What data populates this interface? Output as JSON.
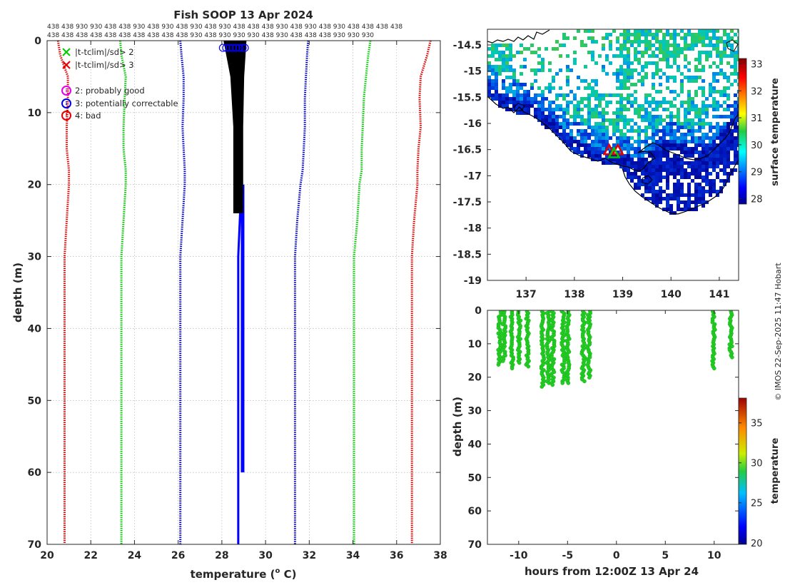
{
  "chart_data": [
    {
      "type": "line",
      "title": "Fish SOOP 13 Apr 2024",
      "xlabel": "temperature (° C)",
      "xlabel_prefix": "temperature (",
      "xlabel_sup": "o",
      "xlabel_suffix": " C)",
      "ylabel": "depth (m)",
      "xlim": [
        20,
        38
      ],
      "ylim": [
        70,
        0
      ],
      "xticks": [
        20,
        22,
        24,
        26,
        28,
        30,
        32,
        34,
        36,
        38
      ],
      "yticks": [
        0,
        10,
        20,
        30,
        40,
        50,
        60,
        70
      ],
      "grid": true,
      "top_labels": [
        "438 438 930 930 438 438 930 438 930 438 930 438 930 438 438 438 930 438 930 438 930 438 438 438 438",
        "438 438 438 438 438 438 438 438 438 438 930 438 930 930 930 438 930 438 438 438 930 930 930"
      ],
      "legend": [
        {
          "marker": "x",
          "color": "#00cc00",
          "label": "|t-tclim|/sd> 2"
        },
        {
          "marker": "x",
          "color": "#e60000",
          "label": "|t-tclim|/sd> 3"
        },
        {
          "marker": "o",
          "color": "#e600e6",
          "label": "2: probably good"
        },
        {
          "marker": "o",
          "color": "#0000e6",
          "label": "3: potentially correctable"
        },
        {
          "marker": "o",
          "color": "#e60000",
          "label": "4: bad"
        }
      ],
      "climatology": [
        {
          "name": "clim-3sd-low",
          "color": "#e60000",
          "depth": [
            0,
            2,
            5,
            8,
            12,
            15,
            18,
            20,
            25,
            30,
            40,
            50,
            60,
            70
          ],
          "temp": [
            20.5,
            20.6,
            20.95,
            20.95,
            20.9,
            20.9,
            21.0,
            21.0,
            20.9,
            20.8,
            20.8,
            20.8,
            20.8,
            20.8
          ]
        },
        {
          "name": "clim-2sd-low",
          "color": "#00cc00",
          "depth": [
            0,
            2,
            5,
            8,
            12,
            15,
            18,
            20,
            25,
            30,
            40,
            50,
            60,
            70
          ],
          "temp": [
            23.35,
            23.4,
            23.6,
            23.55,
            23.5,
            23.5,
            23.6,
            23.6,
            23.5,
            23.4,
            23.4,
            23.4,
            23.4,
            23.4
          ]
        },
        {
          "name": "clim-1sd-low",
          "color": "#0000cc",
          "depth": [
            0,
            2,
            5,
            8,
            12,
            15,
            18,
            20,
            25,
            30,
            40,
            50,
            60,
            70
          ],
          "temp": [
            26.1,
            26.15,
            26.25,
            26.25,
            26.2,
            26.25,
            26.3,
            26.3,
            26.2,
            26.1,
            26.1,
            26.1,
            26.1,
            26.1
          ]
        },
        {
          "name": "clim-1sd-high",
          "color": "#0000cc",
          "depth": [
            0,
            2,
            5,
            8,
            12,
            15,
            18,
            20,
            25,
            30,
            40,
            50,
            60,
            70
          ],
          "temp": [
            31.95,
            31.9,
            31.85,
            31.8,
            31.8,
            31.75,
            31.7,
            31.6,
            31.45,
            31.35,
            31.35,
            31.35,
            31.35,
            31.35
          ]
        },
        {
          "name": "clim-2sd-high",
          "color": "#00cc00",
          "depth": [
            0,
            2,
            5,
            8,
            12,
            15,
            18,
            20,
            25,
            30,
            40,
            50,
            60,
            70
          ],
          "temp": [
            34.8,
            34.7,
            34.6,
            34.5,
            34.45,
            34.4,
            34.4,
            34.3,
            34.2,
            34.05,
            34.05,
            34.05,
            34.05,
            34.05
          ]
        },
        {
          "name": "clim-3sd-high",
          "color": "#e60000",
          "depth": [
            0,
            2,
            5,
            8,
            12,
            15,
            18,
            20,
            25,
            30,
            40,
            50,
            60,
            70
          ],
          "temp": [
            37.55,
            37.4,
            37.1,
            37.05,
            37.1,
            37.0,
            36.95,
            36.95,
            36.8,
            36.7,
            36.7,
            36.7,
            36.7,
            36.7
          ]
        }
      ],
      "profiles_shallow": {
        "color": "#000000",
        "depth": [
          0,
          24
        ],
        "temp_min": [
          28.1,
          28.55
        ],
        "temp_max": [
          29.1,
          28.95
        ]
      },
      "profile_deep": {
        "color": "#0000ff",
        "depth": [
          0,
          23,
          30,
          60,
          70
        ],
        "temp": [
          28.9,
          28.85,
          28.75,
          28.75,
          28.75
        ]
      },
      "profile_deep2": {
        "color": "#0000ff",
        "depth": [
          20,
          60
        ],
        "temp": [
          28.95,
          28.95
        ]
      },
      "surface_flag_markers": {
        "color": "#0000ff",
        "depth": 1,
        "temp": [
          28.05,
          28.2,
          28.35,
          28.5,
          28.65,
          28.8,
          28.95,
          29.05
        ]
      }
    },
    {
      "type": "heatmap",
      "name": "surface temperature map",
      "xlim": [
        136.2,
        141.4
      ],
      "ylim": [
        -19,
        -14.2
      ],
      "xticks": [
        137,
        138,
        139,
        140,
        141
      ],
      "yticks": [
        -14.5,
        -15,
        -15.5,
        -16,
        -16.5,
        -17,
        -17.5,
        -18,
        -18.5,
        -19
      ],
      "colorbar": {
        "label": "surface temperature",
        "range": [
          27.8,
          33.2
        ],
        "ticks": [
          28,
          29,
          30,
          31,
          32,
          33
        ]
      },
      "markers": [
        {
          "lon": 138.72,
          "lat": -16.52,
          "color": "#e60000"
        },
        {
          "lon": 138.9,
          "lat": -16.52,
          "color": "#e60000"
        },
        {
          "lon": 138.82,
          "lat": -16.58,
          "color": "#00cc00"
        }
      ]
    },
    {
      "type": "scatter",
      "name": "profile time series",
      "xlabel": "hours from 12:00Z 13 Apr 24",
      "ylabel": "depth (m)",
      "xlim": [
        -13.2,
        12.5
      ],
      "ylim": [
        70,
        0
      ],
      "xticks": [
        -10,
        -5,
        0,
        5,
        10
      ],
      "yticks": [
        0,
        10,
        20,
        30,
        40,
        50,
        60,
        70
      ],
      "colorbar": {
        "label": "temperature",
        "range": [
          19.8,
          38.1
        ],
        "ticks": [
          20,
          25,
          30,
          35
        ]
      },
      "point_color": "#22cc22",
      "columns": [
        {
          "hour": -11.95,
          "dmax": 16.4
        },
        {
          "hour": -11.5,
          "dmax": 15.6
        },
        {
          "hour": -10.7,
          "dmax": 17.4
        },
        {
          "hour": -9.95,
          "dmax": 16.0
        },
        {
          "hour": -9.1,
          "dmax": 17.0
        },
        {
          "hour": -7.55,
          "dmax": 23.0
        },
        {
          "hour": -7.0,
          "dmax": 22.1
        },
        {
          "hour": -6.5,
          "dmax": 22.4
        },
        {
          "hour": -5.45,
          "dmax": 22.0
        },
        {
          "hour": -4.95,
          "dmax": 22.0
        },
        {
          "hour": -3.4,
          "dmax": 21.4
        },
        {
          "hour": -2.8,
          "dmax": 20.6
        },
        {
          "hour": 9.95,
          "dmax": 17.8
        },
        {
          "hour": 11.7,
          "dmax": 14.2
        }
      ]
    }
  ],
  "credit": "© IMOS 22-Sep-2025 11:47 Hobart"
}
